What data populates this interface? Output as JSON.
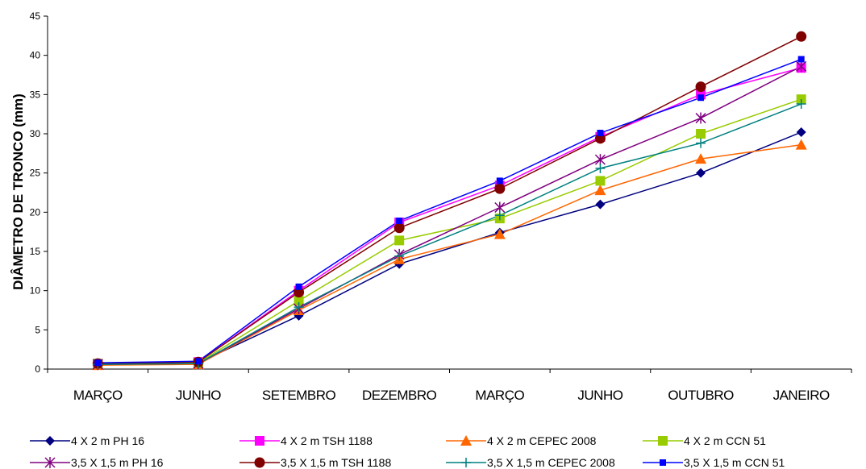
{
  "chart_data": {
    "type": "line",
    "title": "",
    "xlabel": "",
    "ylabel": "DIÂMETRO DE TRONCO (mm)",
    "ylim": [
      0,
      45
    ],
    "yticks": [
      0,
      5,
      10,
      15,
      20,
      25,
      30,
      35,
      40,
      45
    ],
    "grid": false,
    "legend_position": "bottom",
    "categories": [
      "MARÇO",
      "JUNHO",
      "SETEMBRO",
      "DEZEMBRO",
      "MARÇO",
      "JUNHO",
      "OUTUBRO",
      "JANEIRO"
    ],
    "series": [
      {
        "name": "4 X 2 m PH 16",
        "color": "#000080",
        "marker": "diamond",
        "values": [
          0.7,
          0.8,
          6.8,
          13.4,
          17.4,
          21.0,
          25.0,
          30.2
        ]
      },
      {
        "name": "4 X 2 m TSH 1188",
        "color": "#ff00ff",
        "marker": "square",
        "values": [
          0.7,
          0.9,
          10.0,
          18.7,
          23.4,
          29.6,
          35.0,
          38.4
        ]
      },
      {
        "name": "4 X 2 m CEPEC 2008",
        "color": "#ff6600",
        "marker": "triangle",
        "values": [
          0.5,
          0.6,
          7.5,
          14.0,
          17.2,
          22.8,
          26.8,
          28.6
        ]
      },
      {
        "name": "4 X 2 m CCN 51",
        "color": "#99cc00",
        "marker": "square",
        "values": [
          0.7,
          0.8,
          8.7,
          16.4,
          19.2,
          24.0,
          30.0,
          34.4
        ]
      },
      {
        "name": "3,5 X 1,5 m PH 16",
        "color": "#800080",
        "marker": "asterisk",
        "values": [
          0.6,
          0.7,
          7.7,
          14.6,
          20.6,
          26.7,
          32.0,
          38.6
        ]
      },
      {
        "name": "3,5 X 1,5 m TSH 1188",
        "color": "#800000",
        "marker": "circle",
        "values": [
          0.7,
          0.9,
          9.8,
          18.0,
          23.0,
          29.4,
          36.0,
          42.4
        ]
      },
      {
        "name": "3,5 X 1,5 m CEPEC 2008",
        "color": "#008080",
        "marker": "plus",
        "values": [
          0.6,
          0.7,
          7.9,
          14.4,
          19.6,
          25.6,
          28.8,
          33.8
        ]
      },
      {
        "name": "3,5 X 1,5 m CCN 51",
        "color": "#0000ff",
        "marker": "smallsquare",
        "values": [
          0.8,
          1.0,
          10.5,
          18.9,
          24.0,
          30.1,
          34.6,
          39.5
        ]
      }
    ]
  }
}
